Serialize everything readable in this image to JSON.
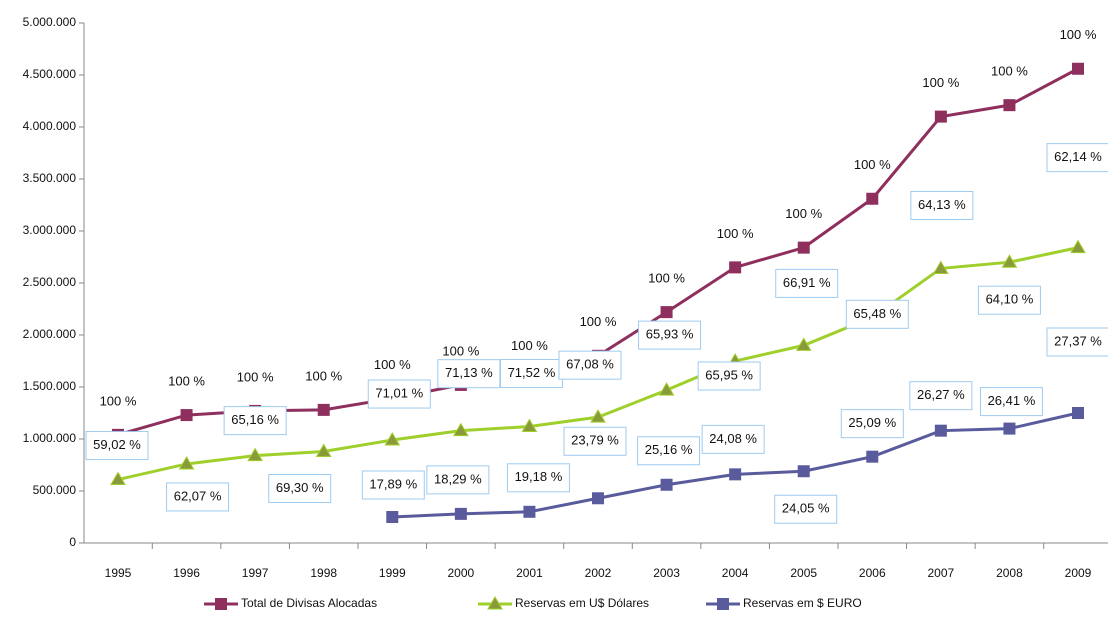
{
  "chart_data": {
    "type": "line",
    "categories": [
      "1995",
      "1996",
      "1997",
      "1998",
      "1999",
      "2000",
      "2001",
      "2002",
      "2003",
      "2004",
      "2005",
      "2006",
      "2007",
      "2008",
      "2009"
    ],
    "ylim": [
      0,
      5000000
    ],
    "yticks": [
      0,
      {
        "value": 500000,
        "label": "500.000"
      },
      {
        "value": 1000000,
        "label": "1.000.000"
      },
      {
        "value": 1500000,
        "label": "1.500.000"
      },
      {
        "value": 2000000,
        "label": "2.000.000"
      },
      {
        "value": 2500000,
        "label": "2.500.000"
      },
      {
        "value": 3000000,
        "label": "3.000.000"
      },
      {
        "value": 3500000,
        "label": "3.500.000"
      },
      {
        "value": 4000000,
        "label": "4.000.000"
      },
      {
        "value": 4500000,
        "label": "4.500.000"
      },
      {
        "value": 5000000,
        "label": "5.000.000"
      }
    ],
    "grid": false,
    "legend": "bottom",
    "series": [
      {
        "name": "Total de Divisas Alocadas",
        "color": "#8e2f5e",
        "marker": "square",
        "values": [
          1040000,
          1230000,
          1270000,
          1280000,
          1390000,
          1520000,
          1570000,
          1800000,
          2220000,
          2650000,
          2840000,
          3310000,
          4100000,
          4210000,
          4560000
        ],
        "labels": [
          "100 %",
          "100 %",
          "100 %",
          "100 %",
          "100 %",
          "100 %",
          "100 %",
          "100 %",
          "100 %",
          "100 %",
          "100 %",
          "100 %",
          "100 %",
          "100 %",
          "100 %"
        ]
      },
      {
        "name": "Reservas em U$ Dólares",
        "color": "#9ecf2a",
        "marker": "triangle",
        "values": [
          610000,
          760000,
          840000,
          880000,
          990000,
          1080000,
          1120000,
          1210000,
          1470000,
          1750000,
          1900000,
          2170000,
          2640000,
          2700000,
          2840000
        ],
        "labels": [
          "59,02 %",
          "62,07 %",
          "65,16 %",
          "69,30 %",
          "71,01 %",
          "71,13 %",
          "71,52 %",
          "67,08 %",
          "65,93 %",
          "65,95 %",
          "66,91 %",
          "65,48 %",
          "64,13 %",
          "64,10 %",
          "62,14 %"
        ]
      },
      {
        "name": "Reservas em $ EURO",
        "color": "#5a5b9c",
        "marker": "square",
        "values": [
          null,
          null,
          null,
          null,
          250000,
          280000,
          300000,
          430000,
          560000,
          660000,
          690000,
          830000,
          1080000,
          1100000,
          1250000
        ],
        "labels": [
          null,
          null,
          null,
          null,
          "17,89 %",
          "18,29 %",
          "19,18 %",
          "23,79 %",
          "25,16 %",
          "24,08 %",
          "24,05 %",
          "25,09 %",
          "26,27 %",
          "26,41 %",
          "27,37 %"
        ]
      }
    ]
  }
}
